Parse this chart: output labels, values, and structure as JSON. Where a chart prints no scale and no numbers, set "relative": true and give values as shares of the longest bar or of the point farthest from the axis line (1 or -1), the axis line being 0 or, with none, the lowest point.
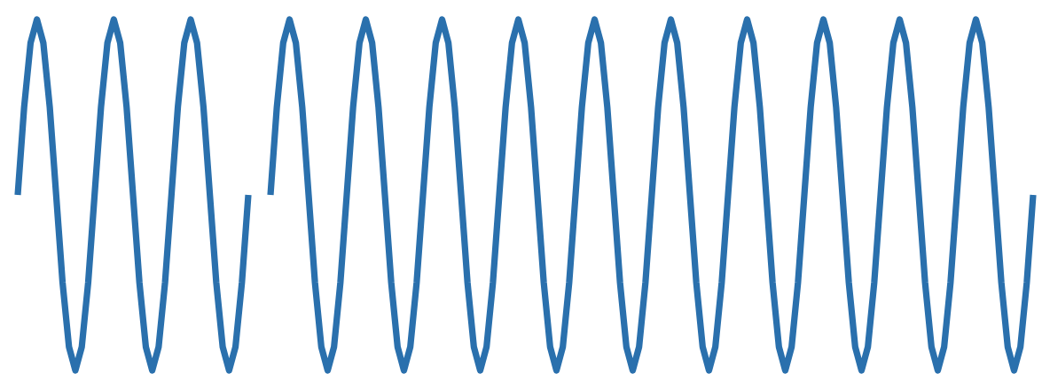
{
  "chart_data": [
    {
      "type": "line",
      "relative": true,
      "marker": "none",
      "line_style": "solid",
      "categories": [
        null,
        null,
        null,
        null,
        null,
        null,
        null,
        null,
        null,
        null,
        null,
        null,
        null,
        null,
        null,
        null,
        null,
        null,
        null,
        null,
        null,
        null,
        null,
        null,
        null,
        null,
        null,
        null,
        null,
        null,
        null,
        null,
        null,
        null,
        null,
        null,
        null
      ],
      "series": [
        {
          "color": "#2a70ad",
          "values": [
            0.5,
            0.75,
            0.933,
            1,
            0.933,
            0.75,
            0.5,
            0.25,
            0.067,
            0,
            0.067,
            0.25,
            0.5,
            0.75,
            0.933,
            1,
            0.933,
            0.75,
            0.5,
            0.25,
            0.067,
            0,
            0.067,
            0.25,
            0.5,
            0.75,
            0.933,
            1,
            0.933,
            0.75,
            0.5,
            0.25,
            0.067,
            0,
            0.067,
            0.25,
            0.5
          ]
        }
      ]
    },
    {
      "type": "line",
      "relative": true,
      "marker": "none",
      "line_style": "solid",
      "categories": [
        null,
        null,
        null,
        null,
        null,
        null,
        null,
        null,
        null,
        null,
        null,
        null,
        null,
        null,
        null,
        null,
        null,
        null,
        null,
        null,
        null,
        null,
        null,
        null,
        null,
        null,
        null,
        null,
        null,
        null,
        null,
        null,
        null,
        null,
        null,
        null,
        null,
        null,
        null,
        null,
        null,
        null,
        null,
        null,
        null,
        null,
        null,
        null,
        null,
        null,
        null,
        null,
        null,
        null,
        null,
        null,
        null,
        null,
        null,
        null,
        null,
        null,
        null,
        null,
        null,
        null,
        null,
        null,
        null,
        null,
        null,
        null,
        null,
        null,
        null,
        null,
        null,
        null,
        null,
        null,
        null,
        null,
        null,
        null,
        null,
        null,
        null,
        null,
        null,
        null,
        null,
        null,
        null,
        null,
        null,
        null,
        null,
        null,
        null,
        null,
        null,
        null,
        null,
        null,
        null,
        null,
        null,
        null,
        null,
        null,
        null,
        null,
        null,
        null,
        null,
        null,
        null,
        null,
        null,
        null,
        null
      ],
      "series": [
        {
          "color": "#2a70ad",
          "values": [
            0.5,
            0.75,
            0.933,
            1,
            0.933,
            0.75,
            0.5,
            0.25,
            0.067,
            0,
            0.067,
            0.25,
            0.5,
            0.75,
            0.933,
            1,
            0.933,
            0.75,
            0.5,
            0.25,
            0.067,
            0,
            0.067,
            0.25,
            0.5,
            0.75,
            0.933,
            1,
            0.933,
            0.75,
            0.5,
            0.25,
            0.067,
            0,
            0.067,
            0.25,
            0.5,
            0.75,
            0.933,
            1,
            0.933,
            0.75,
            0.5,
            0.25,
            0.067,
            0,
            0.067,
            0.25,
            0.5,
            0.75,
            0.933,
            1,
            0.933,
            0.75,
            0.5,
            0.25,
            0.067,
            0,
            0.067,
            0.25,
            0.5,
            0.75,
            0.933,
            1,
            0.933,
            0.75,
            0.5,
            0.25,
            0.067,
            0,
            0.067,
            0.25,
            0.5,
            0.75,
            0.933,
            1,
            0.933,
            0.75,
            0.5,
            0.25,
            0.067,
            0,
            0.067,
            0.25,
            0.5,
            0.75,
            0.933,
            1,
            0.933,
            0.75,
            0.5,
            0.25,
            0.067,
            0,
            0.067,
            0.25,
            0.5,
            0.75,
            0.933,
            1,
            0.933,
            0.75,
            0.5,
            0.25,
            0.067,
            0,
            0.067,
            0.25,
            0.5,
            0.75,
            0.933,
            1,
            0.933,
            0.75,
            0.5,
            0.25,
            0.067,
            0,
            0.067,
            0.25,
            0.5
          ]
        }
      ]
    }
  ]
}
